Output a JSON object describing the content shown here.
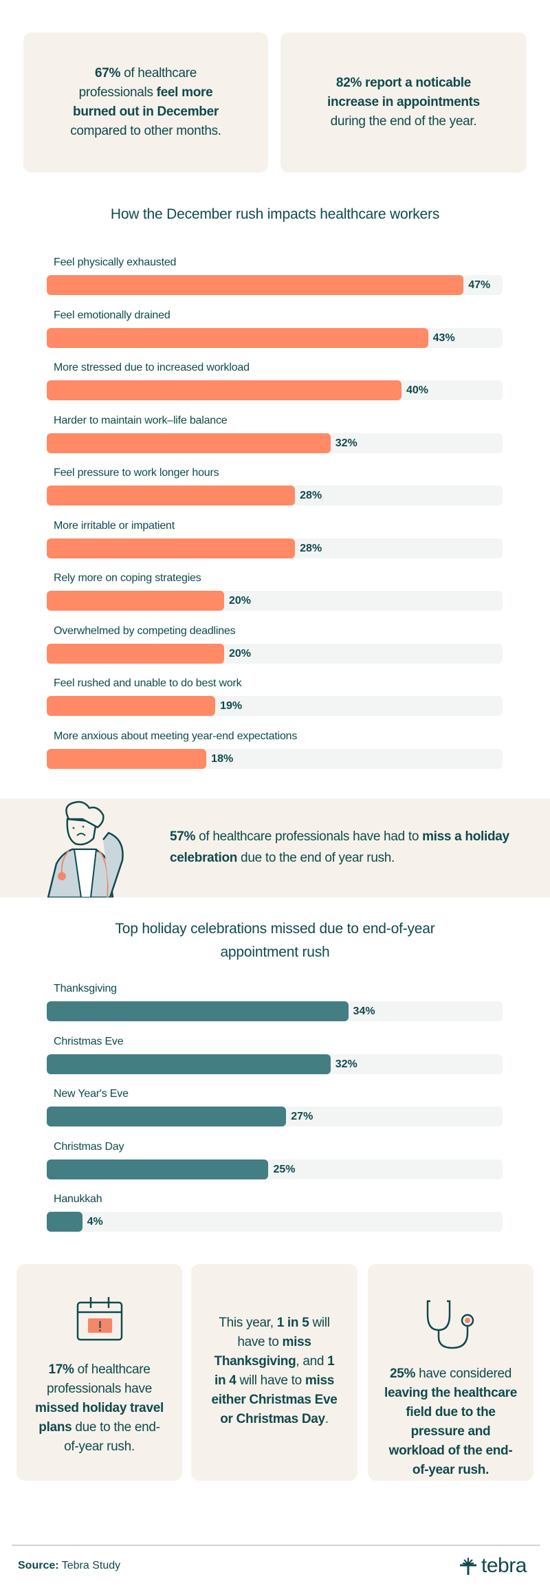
{
  "top_stats": [
    {
      "parts": [
        {
          "text": "67%",
          "bold": true
        },
        {
          "text": " of healthcare professionals ",
          "bold": false
        },
        {
          "text": "feel more burned out in December",
          "bold": true
        },
        {
          "text": " compared to other months.",
          "bold": false
        }
      ]
    },
    {
      "parts": [
        {
          "text": "82% report a noticable increase in appointments",
          "bold": true
        },
        {
          "text": " during the end of the year.",
          "bold": false
        }
      ]
    }
  ],
  "chart_data": [
    {
      "type": "bar",
      "orientation": "horizontal",
      "title": "How the December rush impacts healthcare workers",
      "color": "#ff8a65",
      "track_color": "#f3f5f5",
      "categories": [
        "Feel physically exhausted",
        "Feel emotionally drained",
        "More stressed due to increased workload",
        "Harder to maintain work–life balance",
        "Feel pressure to work longer hours",
        "More irritable or impatient",
        "Rely more on coping strategies",
        "Overwhelmed by competing deadlines",
        "Feel rushed and unable to do best work",
        "More anxious about meeting year-end expectations"
      ],
      "values": [
        47,
        43,
        40,
        32,
        28,
        28,
        20,
        20,
        19,
        18
      ],
      "labels": [
        "47%",
        "43%",
        "40%",
        "32%",
        "28%",
        "28%",
        "20%",
        "20%",
        "19%",
        "18%"
      ]
    },
    {
      "type": "bar",
      "orientation": "horizontal",
      "title": "Top holiday celebrations missed due to end-of-year appointment rush",
      "color": "#437e83",
      "track_color": "#f3f5f5",
      "categories": [
        "Thanksgiving",
        "Christmas Eve",
        "New Year's Eve",
        "Christmas Day",
        "Hanukkah"
      ],
      "values": [
        34,
        32,
        27,
        25,
        4
      ],
      "labels": [
        "34%",
        "32%",
        "27%",
        "25%",
        "4%"
      ]
    }
  ],
  "banner": {
    "icon": "stressed-doctor-illustration",
    "parts": [
      {
        "text": "57%",
        "bold": true
      },
      {
        "text": " of healthcare professionals have had to ",
        "bold": false
      },
      {
        "text": "miss a holiday celebration",
        "bold": true
      },
      {
        "text": " due to the end of year rush.",
        "bold": false
      }
    ]
  },
  "bottom_stats": [
    {
      "icon": "calendar-alert-icon",
      "parts": [
        {
          "text": "17%",
          "bold": true
        },
        {
          "text": " of healthcare professionals have ",
          "bold": false
        },
        {
          "text": "missed holiday travel plans",
          "bold": true
        },
        {
          "text": " due to the end-of-year rush.",
          "bold": false
        }
      ]
    },
    {
      "icon": "",
      "parts": [
        {
          "text": "This year, ",
          "bold": false
        },
        {
          "text": "1 in 5",
          "bold": true
        },
        {
          "text": " will have to ",
          "bold": false
        },
        {
          "text": "miss Thanksgiving",
          "bold": true
        },
        {
          "text": ", and ",
          "bold": false
        },
        {
          "text": "1 in 4",
          "bold": true
        },
        {
          "text": " will have to ",
          "bold": false
        },
        {
          "text": "miss either Christmas Eve or Christmas Day",
          "bold": true
        },
        {
          "text": ".",
          "bold": false
        }
      ]
    },
    {
      "icon": "stethoscope-icon",
      "parts": [
        {
          "text": "25%",
          "bold": true
        },
        {
          "text": " have considered ",
          "bold": false
        },
        {
          "text": "leaving the healthcare field due to the pressure and workload of the end-of-year rush.",
          "bold": true
        }
      ]
    }
  ],
  "footer": {
    "source_label": "Source:",
    "source_value": " Tebra Study",
    "logo_text": "tebra"
  },
  "colors": {
    "text": "#0f4a4c",
    "card": "#f6f2eb",
    "accent_orange": "#ff8a65",
    "accent_teal": "#437e83"
  }
}
